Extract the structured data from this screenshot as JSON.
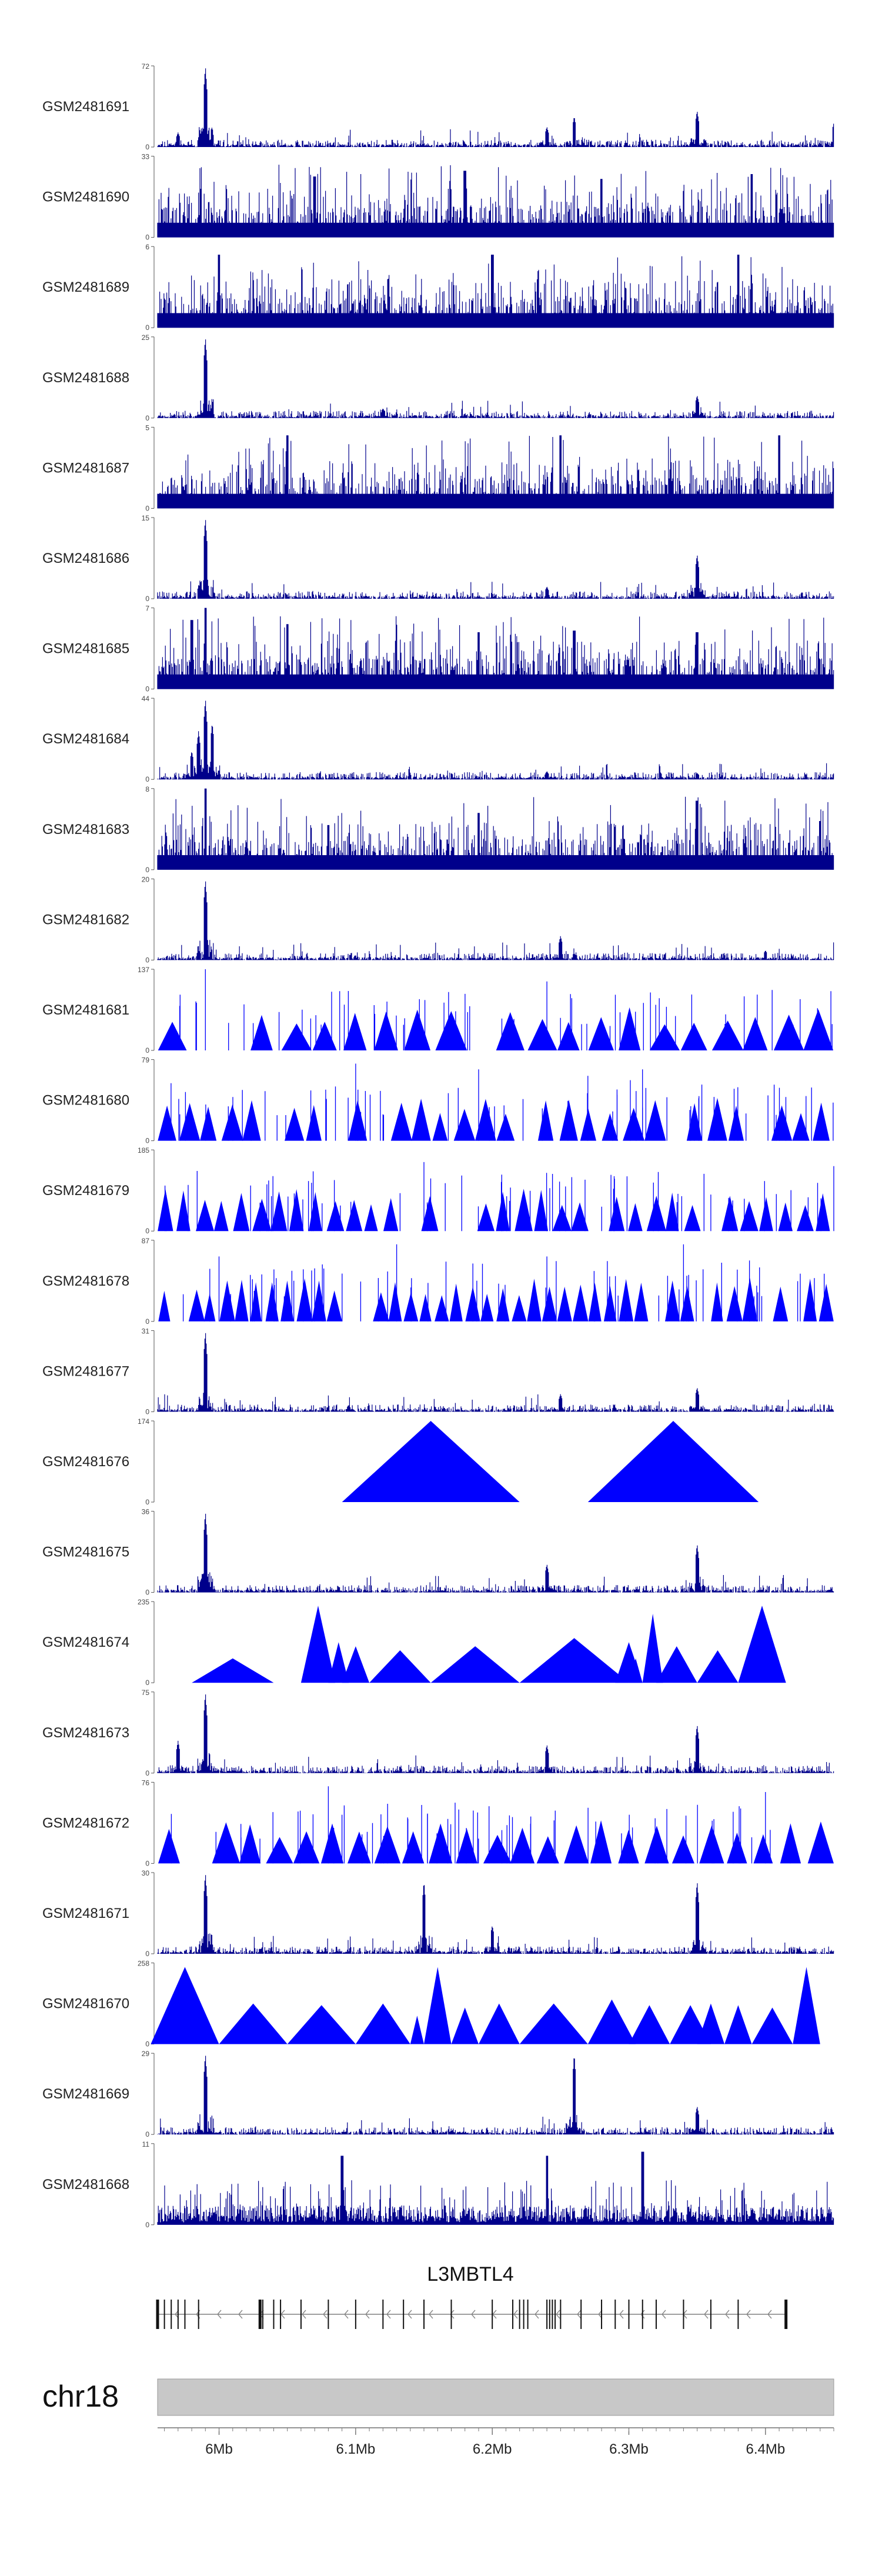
{
  "chart_data": {
    "type": "area",
    "title": "",
    "series": [
      {
        "name": "GSM2481691",
        "ymax": 72,
        "ymin": 0,
        "mode": "spiky",
        "seed": 11,
        "peaks": [
          [
            5.99,
            1.0
          ],
          [
            5.97,
            0.18
          ],
          [
            6.24,
            0.25
          ],
          [
            6.26,
            0.38
          ],
          [
            6.35,
            0.45
          ],
          [
            6.45,
            0.3
          ]
        ]
      },
      {
        "name": "GSM2481690",
        "ymax": 33,
        "ymin": 0,
        "mode": "dense",
        "seed": 22,
        "peaks": [
          [
            6.07,
            0.75
          ],
          [
            6.18,
            0.82
          ],
          [
            6.28,
            0.72
          ],
          [
            6.39,
            0.78
          ]
        ]
      },
      {
        "name": "GSM2481689",
        "ymax": 6,
        "ymin": 0,
        "mode": "dense",
        "seed": 33,
        "peaks": [
          [
            6.0,
            0.9
          ],
          [
            6.2,
            0.9
          ],
          [
            6.38,
            0.9
          ]
        ]
      },
      {
        "name": "GSM2481688",
        "ymax": 25,
        "ymin": 0,
        "mode": "spiky",
        "seed": 44,
        "peaks": [
          [
            5.99,
            1.0
          ],
          [
            6.35,
            0.28
          ],
          [
            6.12,
            0.12
          ]
        ]
      },
      {
        "name": "GSM2481687",
        "ymax": 5,
        "ymin": 0,
        "mode": "dense",
        "seed": 55,
        "peaks": [
          [
            6.05,
            0.9
          ],
          [
            6.25,
            0.9
          ],
          [
            6.41,
            0.9
          ]
        ]
      },
      {
        "name": "GSM2481686",
        "ymax": 15,
        "ymin": 0,
        "mode": "spiky",
        "seed": 66,
        "peaks": [
          [
            5.99,
            1.0
          ],
          [
            6.35,
            0.55
          ],
          [
            6.24,
            0.15
          ]
        ]
      },
      {
        "name": "GSM2481685",
        "ymax": 7,
        "ymin": 0,
        "mode": "dense",
        "seed": 77,
        "peaks": [
          [
            5.99,
            1.0
          ],
          [
            5.98,
            0.85
          ],
          [
            6.05,
            0.8
          ],
          [
            6.19,
            0.7
          ],
          [
            6.26,
            0.72
          ],
          [
            6.35,
            0.7
          ]
        ]
      },
      {
        "name": "GSM2481684",
        "ymax": 44,
        "ymin": 0,
        "mode": "spiky",
        "seed": 88,
        "peaks": [
          [
            5.99,
            1.0
          ],
          [
            5.985,
            0.6
          ],
          [
            5.98,
            0.35
          ],
          [
            5.995,
            0.7
          ],
          [
            6.24,
            0.1
          ],
          [
            6.35,
            0.08
          ]
        ]
      },
      {
        "name": "GSM2481683",
        "ymax": 8,
        "ymin": 0,
        "mode": "dense",
        "seed": 99,
        "peaks": [
          [
            5.99,
            1.0
          ],
          [
            6.08,
            0.55
          ],
          [
            6.35,
            0.85
          ],
          [
            6.44,
            0.6
          ],
          [
            6.19,
            0.7
          ]
        ]
      },
      {
        "name": "GSM2481682",
        "ymax": 20,
        "ymin": 0,
        "mode": "spiky",
        "seed": 111,
        "peaks": [
          [
            5.99,
            1.0
          ],
          [
            6.25,
            0.3
          ],
          [
            6.4,
            0.12
          ]
        ]
      },
      {
        "name": "GSM2481681",
        "ymax": 137,
        "ymin": 0,
        "mode": "triangles",
        "seed": 121,
        "peaks": [
          [
            5.99,
            1.0
          ],
          [
            6.24,
            0.85
          ]
        ],
        "n": 22
      },
      {
        "name": "GSM2481680",
        "ymax": 79,
        "ymin": 0,
        "mode": "triangles",
        "seed": 131,
        "peaks": [
          [
            6.1,
            0.95
          ],
          [
            6.19,
            0.88
          ],
          [
            6.27,
            0.8
          ],
          [
            6.31,
            0.88
          ]
        ],
        "n": 32
      },
      {
        "name": "GSM2481679",
        "ymax": 185,
        "ymin": 0,
        "mode": "triangles",
        "seed": 141,
        "peaks": [
          [
            6.15,
            0.85
          ],
          [
            6.45,
            0.8
          ],
          [
            6.03,
            0.35
          ],
          [
            6.36,
            0.45
          ]
        ],
        "n": 36
      },
      {
        "name": "GSM2481678",
        "ymax": 87,
        "ymin": 0,
        "mode": "triangles",
        "seed": 151,
        "peaks": [
          [
            6.13,
            0.95
          ],
          [
            6.34,
            0.95
          ],
          [
            6.24,
            0.8
          ],
          [
            6.0,
            0.8
          ]
        ],
        "n": 44
      },
      {
        "name": "GSM2481677",
        "ymax": 31,
        "ymin": 0,
        "mode": "spiky",
        "seed": 161,
        "peaks": [
          [
            5.99,
            1.0
          ],
          [
            6.25,
            0.22
          ],
          [
            6.35,
            0.3
          ]
        ]
      },
      {
        "name": "GSM2481676",
        "ymax": 174,
        "ymin": 0,
        "mode": "triangles",
        "seed": 171,
        "peaks": [],
        "fixed": [
          [
            6.09,
            6.22,
            1.0
          ],
          [
            6.27,
            6.395,
            1.0
          ]
        ]
      },
      {
        "name": "GSM2481675",
        "ymax": 36,
        "ymin": 0,
        "mode": "spiky",
        "seed": 181,
        "peaks": [
          [
            5.99,
            1.0
          ],
          [
            6.35,
            0.6
          ],
          [
            6.24,
            0.35
          ]
        ]
      },
      {
        "name": "GSM2481674",
        "ymax": 235,
        "ymin": 0,
        "mode": "triangles",
        "seed": 191,
        "peaks": [],
        "fixed": [
          [
            5.98,
            6.04,
            0.3
          ],
          [
            6.06,
            6.085,
            0.95
          ],
          [
            6.08,
            6.095,
            0.5
          ],
          [
            6.09,
            6.11,
            0.45
          ],
          [
            6.11,
            6.155,
            0.4
          ],
          [
            6.155,
            6.22,
            0.45
          ],
          [
            6.22,
            6.3,
            0.55
          ],
          [
            6.29,
            6.31,
            0.5
          ],
          [
            6.3,
            6.31,
            0.3
          ],
          [
            6.31,
            6.325,
            0.85
          ],
          [
            6.32,
            6.35,
            0.45
          ],
          [
            6.35,
            6.38,
            0.4
          ],
          [
            6.38,
            6.415,
            0.95
          ]
        ]
      },
      {
        "name": "GSM2481673",
        "ymax": 75,
        "ymin": 0,
        "mode": "spiky",
        "seed": 201,
        "peaks": [
          [
            5.99,
            1.0
          ],
          [
            6.35,
            0.6
          ],
          [
            6.24,
            0.35
          ],
          [
            5.97,
            0.4
          ]
        ]
      },
      {
        "name": "GSM2481672",
        "ymax": 76,
        "ymin": 0,
        "mode": "triangles",
        "seed": 211,
        "peaks": [
          [
            6.08,
            0.95
          ],
          [
            6.4,
            0.88
          ],
          [
            6.09,
            0.6
          ]
        ],
        "n": 25
      },
      {
        "name": "GSM2481671",
        "ymax": 30,
        "ymin": 0,
        "mode": "spiky",
        "seed": 221,
        "peaks": [
          [
            5.99,
            1.0
          ],
          [
            6.15,
            0.9
          ],
          [
            6.35,
            0.9
          ],
          [
            6.2,
            0.35
          ]
        ]
      },
      {
        "name": "GSM2481670",
        "ymax": 258,
        "ymin": 0,
        "mode": "triangles",
        "seed": 231,
        "peaks": [],
        "fixed": [
          [
            5.95,
            6.0,
            0.95
          ],
          [
            6.0,
            6.05,
            0.5
          ],
          [
            6.05,
            6.1,
            0.48
          ],
          [
            6.1,
            6.14,
            0.5
          ],
          [
            6.14,
            6.15,
            0.35
          ],
          [
            6.15,
            6.17,
            0.95
          ],
          [
            6.17,
            6.19,
            0.45
          ],
          [
            6.19,
            6.22,
            0.5
          ],
          [
            6.22,
            6.27,
            0.5
          ],
          [
            6.27,
            6.305,
            0.55
          ],
          [
            6.3,
            6.33,
            0.48
          ],
          [
            6.33,
            6.36,
            0.48
          ],
          [
            6.35,
            6.37,
            0.5
          ],
          [
            6.37,
            6.39,
            0.48
          ],
          [
            6.39,
            6.42,
            0.45
          ],
          [
            6.42,
            6.44,
            0.95
          ]
        ]
      },
      {
        "name": "GSM2481669",
        "ymax": 29,
        "ymin": 0,
        "mode": "spiky",
        "seed": 241,
        "peaks": [
          [
            5.99,
            1.0
          ],
          [
            6.26,
            1.0
          ],
          [
            6.35,
            0.35
          ]
        ]
      },
      {
        "name": "GSM2481668",
        "ymax": 11,
        "ymin": 0,
        "mode": "dense",
        "seed": 251,
        "peaks": [
          [
            6.09,
            0.85
          ],
          [
            6.24,
            0.85
          ],
          [
            6.31,
            0.9
          ]
        ],
        "sparse": true
      }
    ],
    "xlim": [
      5.955,
      6.45
    ],
    "x_unit": "Mb",
    "gene": {
      "name": "L3MBTL4",
      "start": 5.955,
      "end": 6.415,
      "strand": "-",
      "exons": [
        5.955,
        5.96,
        5.965,
        5.97,
        5.975,
        5.985,
        6.03,
        6.032,
        6.04,
        6.045,
        6.06,
        6.08,
        6.1,
        6.12,
        6.135,
        6.15,
        6.17,
        6.2,
        6.215,
        6.22,
        6.223,
        6.226,
        6.24,
        6.242,
        6.244,
        6.246,
        6.25,
        6.265,
        6.28,
        6.29,
        6.3,
        6.31,
        6.32,
        6.34,
        6.36,
        6.38,
        6.415
      ]
    },
    "chromosome": {
      "name": "chr18",
      "ticks": [
        6.0,
        6.1,
        6.2,
        6.3,
        6.4
      ],
      "tick_labels": [
        "6Mb",
        "6.1Mb",
        "6.2Mb",
        "6.3Mb",
        "6.4Mb"
      ]
    },
    "colors": {
      "signal": "#0000ff",
      "signal_dark": "#00008b",
      "ideogram": "#c8c8c8"
    }
  }
}
